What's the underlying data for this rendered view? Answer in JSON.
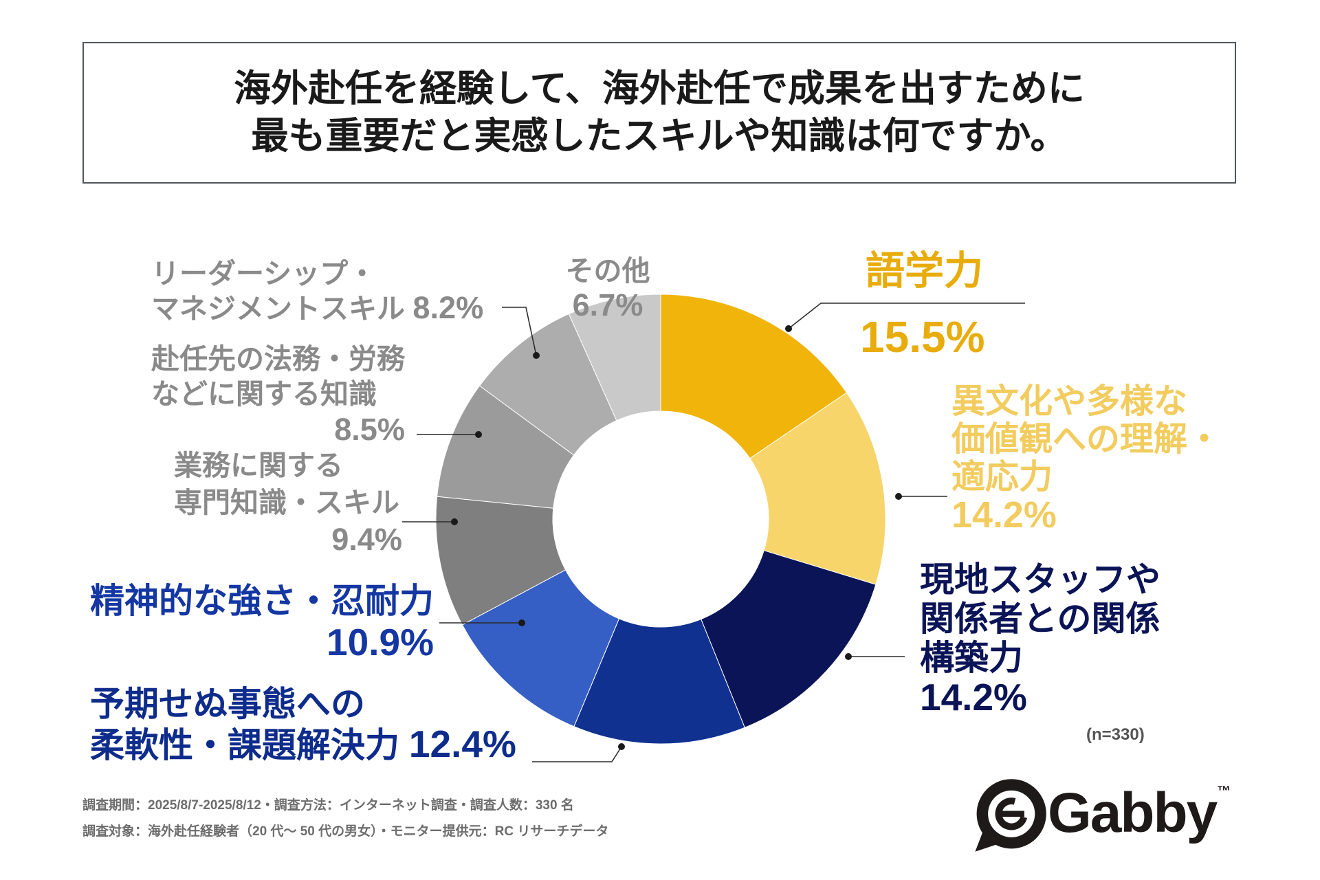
{
  "chart_data": {
    "type": "pie",
    "variant": "donut",
    "title": [
      "海外赴任を経験して、海外赴任で成果を出すために",
      "最も重要だと実感したスキルや知識は何ですか。"
    ],
    "categories": [
      "語学力",
      "異文化や多様な\n価値観への理解・\n適応力",
      "現地スタッフや\n関係者との関係\n構築力",
      "予期せぬ事態への\n柔軟性・課題解決力",
      "精神的な強さ・忍耐力",
      "業務に関する\n専門知識・スキル",
      "赴任先の法務・労務\nなどに関する知識",
      "リーダーシップ・\nマネジメントスキル",
      "その他"
    ],
    "values": [
      15.5,
      14.2,
      14.2,
      12.4,
      10.9,
      9.4,
      8.5,
      8.2,
      6.7
    ],
    "value_labels": [
      "15.5%",
      "14.2%",
      "14.2%",
      "12.4%",
      "10.9%",
      "9.4%",
      "8.5%",
      "8.2%",
      "6.7%"
    ],
    "colors": [
      "#F0B40A",
      "#F7D56B",
      "#0A1456",
      "#10318F",
      "#355FC5",
      "#7F7F7F",
      "#9B9B9B",
      "#ADADAD",
      "#C9C9C9"
    ],
    "label_colors": [
      "#E8AC0B",
      "#F2CC5F",
      "#0B1456",
      "#0E2C8C",
      "#1437A3",
      "#8A8A8A",
      "#8A8A8A",
      "#8A8A8A",
      "#8A8A8A"
    ],
    "n_label": "(n=330)"
  },
  "footer": {
    "line1": "調査期間：2025/8/7-2025/8/12・調査方法：インターネット調査・調査人数：330 名",
    "line2": "調査対象：海外赴任経験者（20 代～ 50 代の男女）・モニター提供元：RC リサーチデータ"
  },
  "logo": {
    "icon": "speech-bubble-g-icon",
    "name": "Gabby",
    "trademark": "™"
  }
}
